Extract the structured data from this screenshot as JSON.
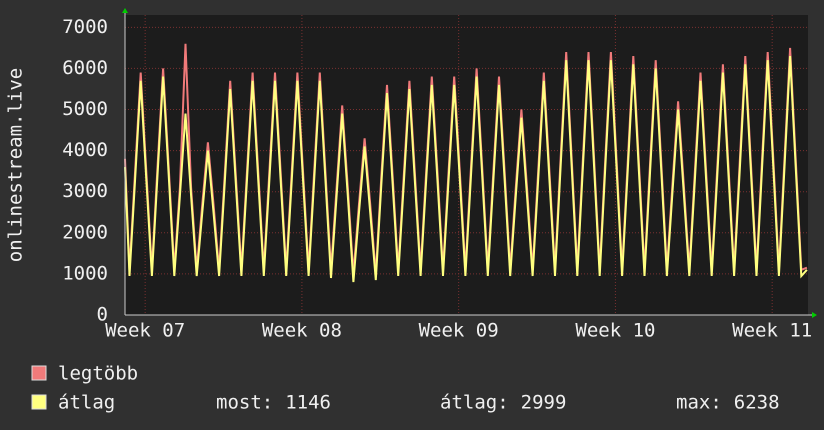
{
  "chart_data": {
    "type": "line",
    "y_label": "onlinestream.live",
    "x": [
      -0.9,
      -0.7,
      -0.45,
      -0.2,
      0.05,
      0.3,
      0.55,
      0.8,
      1.05,
      1.3,
      1.55,
      1.8,
      2.05,
      2.3,
      2.55,
      2.8,
      3.05,
      3.3,
      3.55,
      3.8,
      4.05,
      4.3,
      4.55,
      4.8,
      5.05,
      5.3,
      5.55,
      5.8,
      6.05,
      6.3,
      6.55,
      6.8,
      7.05,
      7.3,
      7.55,
      7.8,
      8.05,
      8.3,
      8.55,
      8.8,
      9.05,
      9.3,
      9.55,
      9.8,
      10.05,
      10.3,
      10.55,
      10.8,
      11.05,
      11.3,
      11.55,
      11.8,
      12.05,
      12.3,
      12.55,
      12.8,
      13.05,
      13.3,
      13.55,
      13.8,
      14.05,
      14.3,
      14.55,
      14.8,
      15.05,
      15.3,
      15.55,
      15.8,
      16.05,
      16.3,
      16.55,
      16.8,
      17.05,
      17.3,
      17.55,
      17.8,
      18.05,
      18.3,
      18.55,
      18.8,
      19.05,
      19.3,
      19.55,
      19.8,
      20.05,
      20.3,
      20.55,
      20.8,
      21.05,
      21.3,
      21.55,
      21.8,
      22.05,
      22.3,
      22.55,
      22.8,
      23.05,
      23.3,
      23.55,
      23.8,
      24.05,
      24.3,
      24.55,
      24.8,
      25.05,
      25.3,
      25.55,
      25.8,
      26.05,
      26.3,
      26.55,
      26.8,
      27.05,
      27.3,
      27.55,
      27.8,
      28.05,
      28.3,
      28.55,
      28.8,
      29.05,
      29.3,
      29.55
    ],
    "series": [
      {
        "name": "legtöbb",
        "color": "#f07a7a",
        "values": [
          3800,
          1100,
          3500,
          5900,
          3500,
          1100,
          3600,
          6000,
          3600,
          1100,
          3100,
          6600,
          3100,
          1100,
          2700,
          4200,
          2700,
          1100,
          3400,
          5700,
          3400,
          1100,
          3500,
          5900,
          3500,
          1100,
          3500,
          5900,
          3500,
          1100,
          3500,
          5900,
          3500,
          1100,
          3500,
          5900,
          3500,
          1100,
          3100,
          5100,
          3100,
          1000,
          2700,
          4300,
          2700,
          1000,
          3400,
          5600,
          3400,
          1100,
          3400,
          5700,
          3400,
          1100,
          3500,
          5800,
          3500,
          1100,
          3500,
          5800,
          3500,
          1100,
          3600,
          6000,
          3600,
          1100,
          3500,
          5800,
          3500,
          1100,
          3100,
          5000,
          3100,
          1100,
          3500,
          5900,
          3500,
          1100,
          3800,
          6400,
          3800,
          1100,
          3800,
          6400,
          3800,
          1100,
          3800,
          6400,
          3800,
          1100,
          3700,
          6300,
          3700,
          1100,
          3700,
          6200,
          3700,
          1100,
          3200,
          5200,
          3200,
          1100,
          3500,
          5900,
          3500,
          1100,
          3600,
          6100,
          3600,
          1100,
          3700,
          6300,
          3700,
          1100,
          3800,
          6400,
          3800,
          1100,
          3800,
          6500,
          3800,
          1100,
          1150
        ]
      },
      {
        "name": "átlag",
        "color": "#ffff80",
        "values": [
          3600,
          950,
          3300,
          5700,
          3300,
          950,
          3400,
          5800,
          3400,
          950,
          2900,
          4900,
          2900,
          950,
          2500,
          4000,
          2500,
          950,
          3200,
          5500,
          3200,
          950,
          3300,
          5700,
          3300,
          950,
          3300,
          5700,
          3300,
          950,
          3300,
          5700,
          3300,
          950,
          3300,
          5700,
          3300,
          900,
          2900,
          4900,
          2900,
          800,
          2500,
          4100,
          2500,
          850,
          3200,
          5400,
          3200,
          950,
          3200,
          5500,
          3200,
          950,
          3300,
          5600,
          3300,
          950,
          3300,
          5600,
          3300,
          950,
          3400,
          5800,
          3400,
          950,
          3300,
          5600,
          3300,
          950,
          2900,
          4800,
          2900,
          950,
          3300,
          5700,
          3300,
          950,
          3600,
          6200,
          3600,
          950,
          3600,
          6200,
          3600,
          950,
          3600,
          6200,
          3600,
          950,
          3500,
          6100,
          3500,
          950,
          3500,
          6000,
          3500,
          950,
          3000,
          5000,
          3000,
          950,
          3300,
          5700,
          3300,
          950,
          3400,
          5900,
          3400,
          950,
          3500,
          6100,
          3500,
          950,
          3600,
          6200,
          3600,
          950,
          3600,
          6300,
          3600,
          950,
          1100
        ]
      }
    ],
    "xlim": [
      -0.9,
      29.6
    ],
    "xticks": [
      {
        "value": 0,
        "label": "Week 07"
      },
      {
        "value": 7,
        "label": "Week 08"
      },
      {
        "value": 14,
        "label": "Week 09"
      },
      {
        "value": 21,
        "label": "Week 10"
      },
      {
        "value": 28,
        "label": "Week 11"
      }
    ],
    "ylim": [
      0,
      7300
    ],
    "yticks": [
      0,
      1000,
      2000,
      3000,
      4000,
      5000,
      6000,
      7000
    ],
    "grid": true,
    "legend_stats": [
      {
        "label": "most:",
        "value": 1146
      },
      {
        "label": "átlag:",
        "value": 2999
      },
      {
        "label": "max:",
        "value": 6238
      }
    ]
  }
}
